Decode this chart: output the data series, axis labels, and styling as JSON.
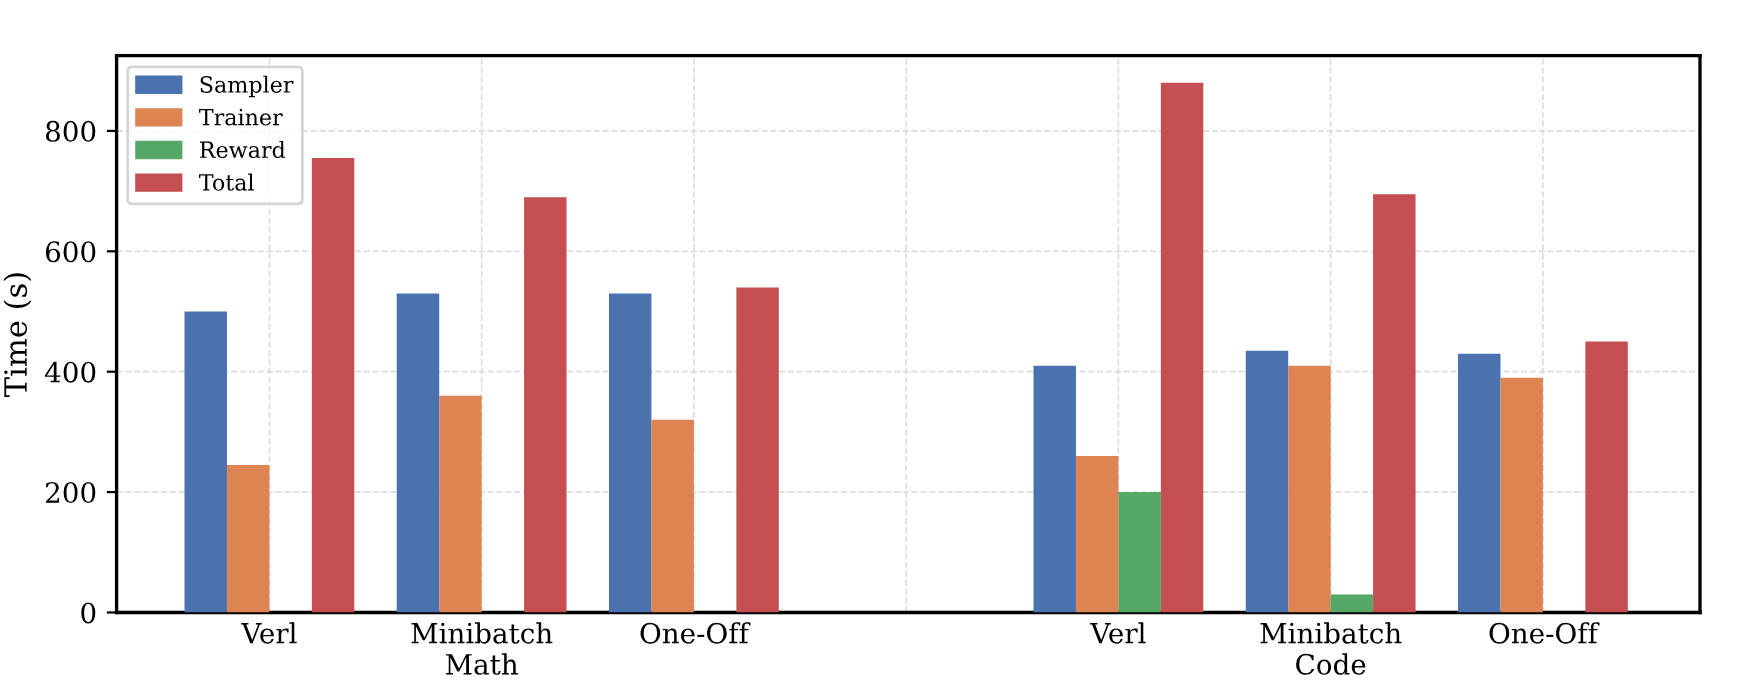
{
  "chart_data": {
    "type": "bar",
    "ylabel": "Time (s)",
    "categories": [
      "Verl",
      "Minibatch\nMath",
      "One-Off",
      null,
      "Verl",
      "Minibatch\nCode",
      "One-Off"
    ],
    "series": [
      {
        "name": "Sampler",
        "color": "#4a72b0",
        "values": [
          500,
          530,
          530,
          null,
          410,
          435,
          430
        ]
      },
      {
        "name": "Trainer",
        "color": "#dd8452",
        "values": [
          245,
          360,
          320,
          null,
          260,
          410,
          390
        ]
      },
      {
        "name": "Reward",
        "color": "#55a868",
        "values": [
          null,
          null,
          null,
          null,
          200,
          30,
          null
        ]
      },
      {
        "name": "Total",
        "color": "#c44e52",
        "values": [
          755,
          690,
          540,
          null,
          880,
          695,
          450
        ]
      }
    ],
    "ylim": [
      0,
      925
    ],
    "yticks": [
      0,
      200,
      400,
      600,
      800
    ],
    "grid": true,
    "legend": "top left"
  }
}
